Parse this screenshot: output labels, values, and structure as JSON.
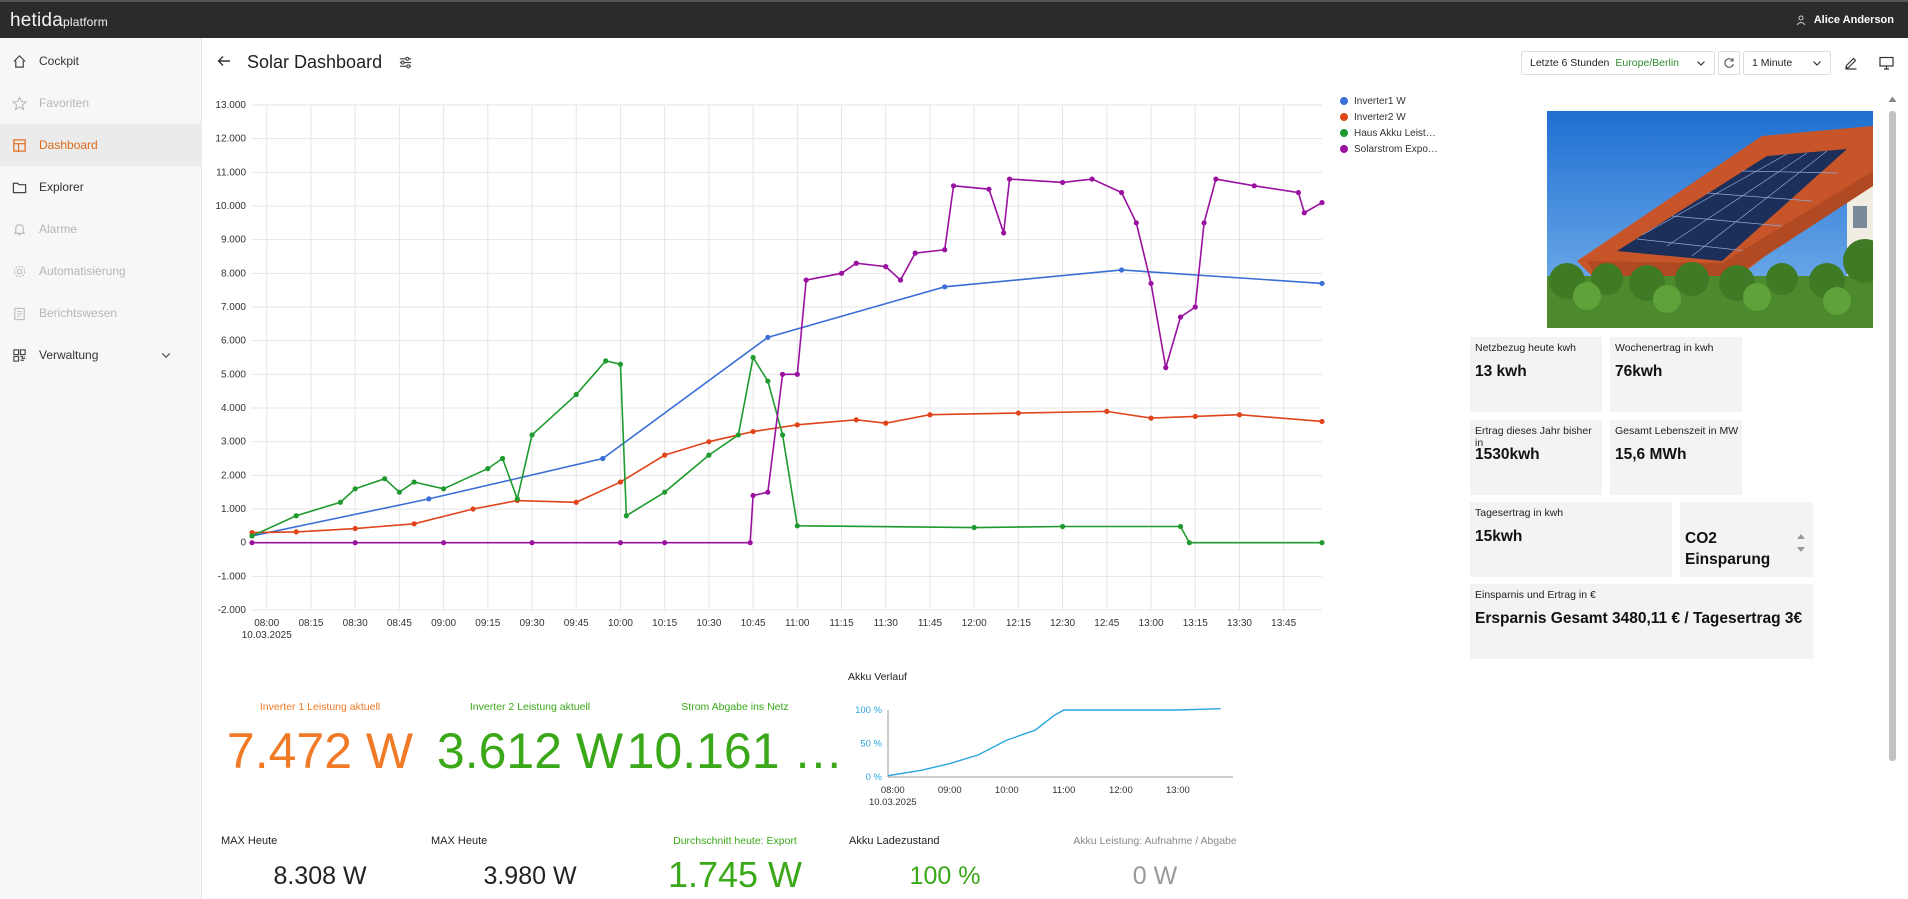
{
  "app": {
    "brand_main": "hetida",
    "brand_sub": "platform",
    "user": "Alice Anderson"
  },
  "sidebar": {
    "items": [
      {
        "label": "Cockpit",
        "state": "normal",
        "icon": "home-icon"
      },
      {
        "label": "Favoriten",
        "state": "disabled",
        "icon": "star-icon"
      },
      {
        "label": "Dashboard",
        "state": "active",
        "icon": "dashboard-icon"
      },
      {
        "label": "Explorer",
        "state": "normal",
        "icon": "folder-icon"
      },
      {
        "label": "Alarme",
        "state": "disabled",
        "icon": "bell-icon"
      },
      {
        "label": "Automatisierung",
        "state": "disabled",
        "icon": "gear-icon"
      },
      {
        "label": "Berichtswesen",
        "state": "disabled",
        "icon": "clipboard-icon"
      },
      {
        "label": "Verwaltung",
        "state": "normal",
        "icon": "qr-icon"
      }
    ]
  },
  "header": {
    "title": "Solar Dashboard",
    "time_range": "Letzte 6 Stunden",
    "timezone": "Europe/Berlin",
    "interval": "1 Minute"
  },
  "legend": [
    {
      "name": "Inverter1 W",
      "color": "#3a6fd6"
    },
    {
      "name": "Inverter2 W",
      "color": "#e0441a"
    },
    {
      "name": "Haus Akku Leist…",
      "color": "#1f9a2e"
    },
    {
      "name": "Solarstrom Expo…",
      "color": "#9a10a0"
    }
  ],
  "chart_data": [
    {
      "type": "line",
      "ylim": [
        -2000,
        13000
      ],
      "yticks": [
        "13.000",
        "12.000",
        "11.000",
        "10.000",
        "9.000",
        "8.000",
        "7.000",
        "6.000",
        "5.000",
        "4.000",
        "3.000",
        "2.000",
        "1.000",
        "0",
        "-1.000",
        "-2.000"
      ],
      "xticks": [
        "08:00",
        "08:15",
        "08:30",
        "08:45",
        "09:00",
        "09:15",
        "09:30",
        "09:45",
        "10:00",
        "10:15",
        "10:30",
        "10:45",
        "11:00",
        "11:15",
        "11:30",
        "11:45",
        "12:00",
        "12:15",
        "12:30",
        "12:45",
        "13:00",
        "13:15",
        "13:30",
        "13:45"
      ],
      "x_date": "10.03.2025",
      "x_range": [
        "07:55",
        "13:58"
      ],
      "series": [
        {
          "name": "Inverter1 W",
          "color": "#3a6fd6",
          "points": [
            [
              "07:55",
              200
            ],
            [
              "08:55",
              1300
            ],
            [
              "09:54",
              2500
            ],
            [
              "10:50",
              6100
            ],
            [
              "11:50",
              7600
            ],
            [
              "12:50",
              8100
            ],
            [
              "13:58",
              7700
            ]
          ]
        },
        {
          "name": "Inverter2 W",
          "color": "#e0441a",
          "points": [
            [
              "07:55",
              300
            ],
            [
              "08:10",
              320
            ],
            [
              "08:30",
              420
            ],
            [
              "08:50",
              560
            ],
            [
              "09:10",
              1000
            ],
            [
              "09:25",
              1250
            ],
            [
              "09:45",
              1200
            ],
            [
              "10:00",
              1800
            ],
            [
              "10:15",
              2600
            ],
            [
              "10:30",
              3000
            ],
            [
              "10:45",
              3300
            ],
            [
              "11:00",
              3500
            ],
            [
              "11:20",
              3650
            ],
            [
              "11:30",
              3550
            ],
            [
              "11:45",
              3800
            ],
            [
              "12:15",
              3850
            ],
            [
              "12:45",
              3900
            ],
            [
              "13:00",
              3700
            ],
            [
              "13:15",
              3750
            ],
            [
              "13:30",
              3800
            ],
            [
              "13:58",
              3600
            ]
          ]
        },
        {
          "name": "Haus Akku Leistung",
          "color": "#1f9a2e",
          "points": [
            [
              "07:55",
              200
            ],
            [
              "08:10",
              800
            ],
            [
              "08:25",
              1200
            ],
            [
              "08:30",
              1600
            ],
            [
              "08:40",
              1900
            ],
            [
              "08:45",
              1500
            ],
            [
              "08:50",
              1800
            ],
            [
              "09:00",
              1600
            ],
            [
              "09:15",
              2200
            ],
            [
              "09:20",
              2500
            ],
            [
              "09:25",
              1300
            ],
            [
              "09:30",
              3200
            ],
            [
              "09:45",
              4400
            ],
            [
              "09:55",
              5400
            ],
            [
              "10:00",
              5300
            ],
            [
              "10:02",
              800
            ],
            [
              "10:15",
              1500
            ],
            [
              "10:30",
              2600
            ],
            [
              "10:40",
              3200
            ],
            [
              "10:45",
              5500
            ],
            [
              "10:50",
              4800
            ],
            [
              "10:55",
              3200
            ],
            [
              "11:00",
              500
            ],
            [
              "12:00",
              450
            ],
            [
              "12:30",
              480
            ],
            [
              "13:10",
              480
            ],
            [
              "13:13",
              0
            ],
            [
              "13:58",
              0
            ]
          ]
        },
        {
          "name": "Solarstrom Export",
          "color": "#9a10a0",
          "points": [
            [
              "07:55",
              0
            ],
            [
              "08:30",
              0
            ],
            [
              "09:00",
              0
            ],
            [
              "09:30",
              0
            ],
            [
              "10:00",
              0
            ],
            [
              "10:15",
              0
            ],
            [
              "10:44",
              0
            ],
            [
              "10:45",
              1400
            ],
            [
              "10:50",
              1500
            ],
            [
              "10:55",
              5000
            ],
            [
              "11:00",
              5000
            ],
            [
              "11:03",
              7800
            ],
            [
              "11:15",
              8000
            ],
            [
              "11:20",
              8300
            ],
            [
              "11:30",
              8200
            ],
            [
              "11:35",
              7800
            ],
            [
              "11:40",
              8600
            ],
            [
              "11:50",
              8700
            ],
            [
              "11:53",
              10600
            ],
            [
              "12:05",
              10500
            ],
            [
              "12:10",
              9200
            ],
            [
              "12:12",
              10800
            ],
            [
              "12:30",
              10700
            ],
            [
              "12:40",
              10800
            ],
            [
              "12:50",
              10400
            ],
            [
              "12:55",
              9500
            ],
            [
              "13:00",
              7700
            ],
            [
              "13:05",
              5200
            ],
            [
              "13:10",
              6700
            ],
            [
              "13:15",
              7000
            ],
            [
              "13:18",
              9500
            ],
            [
              "13:22",
              10800
            ],
            [
              "13:35",
              10600
            ],
            [
              "13:50",
              10400
            ],
            [
              "13:52",
              9800
            ],
            [
              "13:58",
              10100
            ]
          ]
        }
      ]
    },
    {
      "type": "line",
      "title": "Akku Verlauf",
      "ylim": [
        0,
        100
      ],
      "yticks": [
        "100 %",
        "50 %",
        "0 %"
      ],
      "xticks": [
        "08:00",
        "09:00",
        "10:00",
        "11:00",
        "12:00",
        "13:00"
      ],
      "x_date": "10.03.2025",
      "series": [
        {
          "name": "Akku",
          "color": "#2aa6e0",
          "points": [
            [
              "07:55",
              2
            ],
            [
              "08:30",
              10
            ],
            [
              "09:00",
              20
            ],
            [
              "09:30",
              33
            ],
            [
              "10:00",
              55
            ],
            [
              "10:30",
              70
            ],
            [
              "10:50",
              92
            ],
            [
              "11:00",
              100
            ],
            [
              "12:00",
              100
            ],
            [
              "13:00",
              100
            ],
            [
              "13:45",
              102
            ]
          ]
        }
      ]
    }
  ],
  "tiles": {
    "netzbezug": {
      "label": "Netzbezug heute kwh",
      "value": "13 kwh"
    },
    "wochenertrag": {
      "label": "Wochenertrag in kwh",
      "value": "76kwh"
    },
    "jahr": {
      "label": "Ertrag dieses Jahr bisher in",
      "value": "1530kwh"
    },
    "lebenszeit": {
      "label": "Gesamt Lebenszeit in MW",
      "value": "15,6 MWh"
    },
    "tagesertrag": {
      "label": "Tagesertrag in kwh",
      "value": "15kwh"
    },
    "co2": {
      "value": "CO2 Einsparung"
    },
    "ersparnis": {
      "label": "Einsparnis und Ertrag in €",
      "value": "Ersparnis Gesamt 3480,11 € / Tagesertrag 3€"
    }
  },
  "stats": {
    "inv1": {
      "label": "Inverter 1 Leistung aktuell",
      "value": "7.472 W",
      "color": "#f07a25"
    },
    "inv2": {
      "label": "Inverter 2 Leistung aktuell",
      "value": "3.612 W",
      "color": "#3aa818"
    },
    "netz": {
      "label": "Strom Abgabe ins Netz",
      "value": "10.161 …",
      "color": "#3aa818"
    },
    "max1": {
      "label": "MAX Heute",
      "value": "8.308 W"
    },
    "max2": {
      "label": "MAX Heute",
      "value": "3.980 W"
    },
    "avg": {
      "label": "Durchschnitt heute: Export",
      "value": "1.745 W"
    },
    "akku": {
      "label": "Akku Ladezustand",
      "value": "100 %"
    },
    "akku_leistung": {
      "label": "Akku Leistung: Aufnahme / Abgabe",
      "value": "0 W"
    }
  }
}
